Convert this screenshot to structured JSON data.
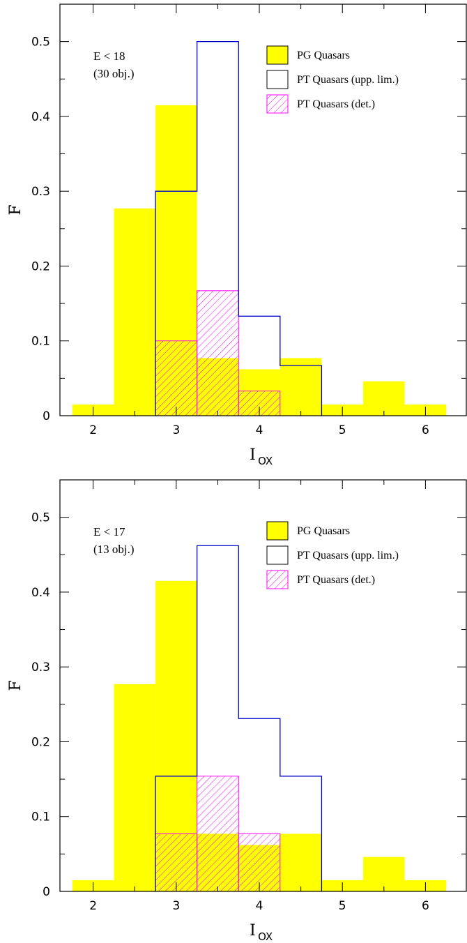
{
  "chart_data": [
    {
      "type": "bar",
      "panel": "top",
      "xlabel_main": "I",
      "xlabel_sub": "OX",
      "ylabel": "F",
      "xlim": [
        1.6,
        6.5
      ],
      "ylim": [
        0,
        0.55
      ],
      "xticks": [
        "2",
        "3",
        "4",
        "5",
        "6"
      ],
      "yticks": [
        "0",
        "0.1",
        "0.2",
        "0.3",
        "0.4",
        "0.5"
      ],
      "annotation": [
        "E < 18",
        "(30 obj.)"
      ],
      "bin_edges": [
        1.75,
        2.25,
        2.75,
        3.25,
        3.75,
        4.25,
        4.75,
        5.25,
        5.75,
        6.25
      ],
      "series": [
        {
          "name": "PG Quasars",
          "style": "filled",
          "color": "#ffff00",
          "values": [
            0.015,
            0.277,
            0.415,
            0.077,
            0.062,
            0.077,
            0.015,
            0.046,
            0.015
          ]
        },
        {
          "name": "PT Quasars (upp. lim.)",
          "style": "outline",
          "color": "#0000cc",
          "values": [
            0,
            0,
            0.3,
            0.5,
            0.133,
            0.067,
            0,
            0,
            0
          ]
        },
        {
          "name": "PT Quasars (det.)",
          "style": "hatched",
          "color": "#ff00ff",
          "values": [
            0,
            0,
            0.1,
            0.167,
            0.033,
            0,
            0,
            0,
            0
          ]
        }
      ]
    },
    {
      "type": "bar",
      "panel": "bottom",
      "xlabel_main": "I",
      "xlabel_sub": "OX",
      "ylabel": "F",
      "xlim": [
        1.6,
        6.5
      ],
      "ylim": [
        0,
        0.55
      ],
      "xticks": [
        "2",
        "3",
        "4",
        "5",
        "6"
      ],
      "yticks": [
        "0",
        "0.1",
        "0.2",
        "0.3",
        "0.4",
        "0.5"
      ],
      "annotation": [
        "E < 17",
        "(13 obj.)"
      ],
      "bin_edges": [
        1.75,
        2.25,
        2.75,
        3.25,
        3.75,
        4.25,
        4.75,
        5.25,
        5.75,
        6.25
      ],
      "series": [
        {
          "name": "PG Quasars",
          "style": "filled",
          "color": "#ffff00",
          "values": [
            0.015,
            0.277,
            0.415,
            0.077,
            0.062,
            0.077,
            0.015,
            0.046,
            0.015
          ]
        },
        {
          "name": "PT Quasars (upp. lim.)",
          "style": "outline",
          "color": "#0000cc",
          "values": [
            0,
            0,
            0.154,
            0.462,
            0.231,
            0.154,
            0,
            0,
            0
          ]
        },
        {
          "name": "PT Quasars (det.)",
          "style": "hatched",
          "color": "#ff00ff",
          "values": [
            0,
            0,
            0.077,
            0.154,
            0.077,
            0,
            0,
            0,
            0
          ]
        }
      ]
    }
  ]
}
